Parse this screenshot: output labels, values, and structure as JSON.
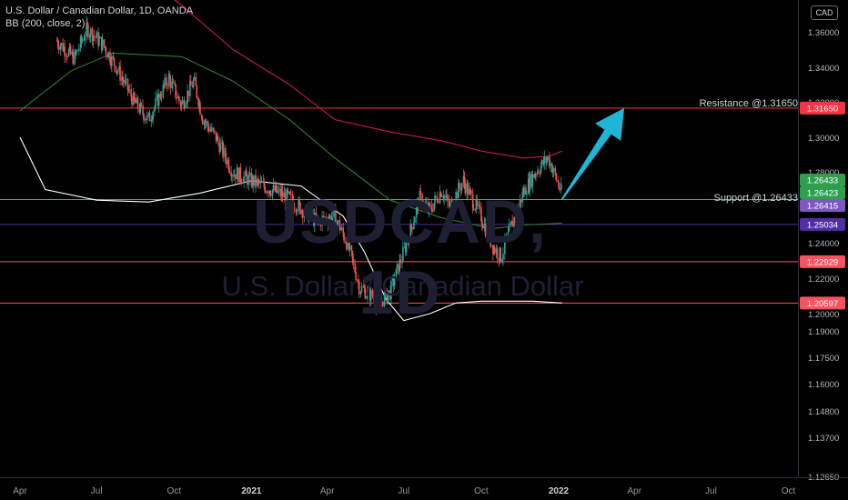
{
  "header": {
    "title": "U.S. Dollar / Canadian Dollar, 1D, OANDA",
    "indicator": "BB (200, close, 2)"
  },
  "currency_label": "CAD",
  "watermark": {
    "symbol": "USDCAD, 1D",
    "name": "U.S. Dollar / Canadian Dollar"
  },
  "colors": {
    "resistance": "#f23645",
    "support_line": "#4caf50",
    "support_badge": "#7e57c2",
    "level_125": "#512da8",
    "level_low": "#f7525f",
    "bb_upper": "#c2185b",
    "bb_basis": "#2e7d32",
    "bb_lower": "#ffffff",
    "arrow": "#1eb5d6",
    "price_green": "#2e9e4f",
    "candle_up": "#26a69a",
    "candle_down": "#ef5350"
  },
  "levels": {
    "resistance": {
      "label": "Resistance @1.31650",
      "value": 1.3165,
      "badge": "1.31650"
    },
    "support": {
      "label": "Support @1.26433",
      "value": 1.26433
    },
    "lines": [
      {
        "value": 1.25034,
        "badge": "1.25034",
        "color": "#512da8"
      },
      {
        "value": 1.22929,
        "badge": "1.22929",
        "color": "#f7525f"
      },
      {
        "value": 1.20597,
        "badge": "1.20597",
        "color": "#f7525f"
      }
    ],
    "price_badges": [
      {
        "value": 1.26433,
        "text": "1.26433",
        "color": "#2e9e4f"
      },
      {
        "value": 1.26423,
        "text": "1.26423",
        "color": "#2e9e4f"
      },
      {
        "value": 1.26415,
        "text": "1.26415",
        "color": "#7e57c2"
      }
    ]
  },
  "chart_data": {
    "type": "candlestick",
    "title": "U.S. Dollar / Canadian Dollar, 1D, OANDA",
    "indicator": "BB (200, close, 2)",
    "y_ticks": [
      "1.36000",
      "1.34000",
      "1.32000",
      "1.30000",
      "1.28000",
      "1.26000",
      "1.24000",
      "1.22000",
      "1.20000",
      "1.19000",
      "1.17500",
      "1.16000",
      "1.14800",
      "1.13700",
      "1.12650"
    ],
    "x_ticks": [
      "Apr",
      "Jul",
      "Oct",
      "2021",
      "Apr",
      "Jul",
      "Oct",
      "2022",
      "Apr",
      "Jul",
      "Oct"
    ],
    "price_path": {
      "dates": [
        "2020-05-15",
        "2020-06-05",
        "2020-06-20",
        "2020-07-10",
        "2020-07-25",
        "2020-08-15",
        "2020-09-01",
        "2020-09-25",
        "2020-10-10",
        "2020-10-25",
        "2020-11-05",
        "2020-11-20",
        "2020-12-10",
        "2021-01-01",
        "2021-01-25",
        "2021-02-15",
        "2021-03-05",
        "2021-03-20",
        "2021-04-10",
        "2021-04-25",
        "2021-05-10",
        "2021-05-25",
        "2021-06-01",
        "2021-06-15",
        "2021-07-05",
        "2021-07-20",
        "2021-08-01",
        "2021-08-15",
        "2021-08-25",
        "2021-09-10",
        "2021-09-20",
        "2021-10-01",
        "2021-10-15",
        "2021-10-25",
        "2021-11-05",
        "2021-11-20",
        "2021-12-05",
        "2021-12-20",
        "2022-01-05"
      ],
      "close": [
        1.355,
        1.345,
        1.362,
        1.352,
        1.34,
        1.32,
        1.31,
        1.334,
        1.318,
        1.332,
        1.31,
        1.3,
        1.28,
        1.275,
        1.27,
        1.265,
        1.258,
        1.252,
        1.255,
        1.24,
        1.215,
        1.21,
        1.205,
        1.212,
        1.24,
        1.265,
        1.258,
        1.27,
        1.26,
        1.275,
        1.265,
        1.255,
        1.238,
        1.232,
        1.248,
        1.268,
        1.28,
        1.288,
        1.268
      ]
    },
    "bollinger": {
      "upper": {
        "dates": [
          "2020-06-20",
          "2020-08-15",
          "2020-10-10",
          "2020-12-10",
          "2021-02-15",
          "2021-04-10",
          "2021-06-15",
          "2021-08-15",
          "2021-10-01",
          "2021-11-20",
          "2021-12-20",
          "2022-01-05"
        ],
        "values": [
          1.41,
          1.395,
          1.375,
          1.35,
          1.33,
          1.31,
          1.303,
          1.298,
          1.292,
          1.288,
          1.289,
          1.292
        ]
      },
      "basis": {
        "dates": [
          "2020-04-01",
          "2020-06-01",
          "2020-07-20",
          "2020-10-10",
          "2020-12-10",
          "2021-02-15",
          "2021-04-10",
          "2021-06-15",
          "2021-08-15",
          "2021-10-15",
          "2021-11-20",
          "2022-01-05"
        ],
        "values": [
          1.315,
          1.338,
          1.348,
          1.346,
          1.332,
          1.31,
          1.288,
          1.264,
          1.254,
          1.248,
          1.25,
          1.251
        ]
      },
      "lower": {
        "dates": [
          "2020-04-01",
          "2020-05-01",
          "2020-07-01",
          "2020-09-01",
          "2020-11-01",
          "2021-01-01",
          "2021-03-01",
          "2021-04-20",
          "2021-05-15",
          "2021-06-10",
          "2021-07-01",
          "2021-08-01",
          "2021-09-01",
          "2021-10-01",
          "2021-11-01",
          "2021-12-01",
          "2022-01-05"
        ],
        "values": [
          1.3,
          1.27,
          1.264,
          1.263,
          1.268,
          1.275,
          1.272,
          1.255,
          1.235,
          1.208,
          1.196,
          1.2,
          1.206,
          1.207,
          1.207,
          1.207,
          1.206
        ]
      }
    },
    "projection_arrow": {
      "from": {
        "date": "2022-01-05",
        "price": 1.2645
      },
      "to": {
        "date": "2022-03-20",
        "price": 1.3165
      }
    }
  }
}
